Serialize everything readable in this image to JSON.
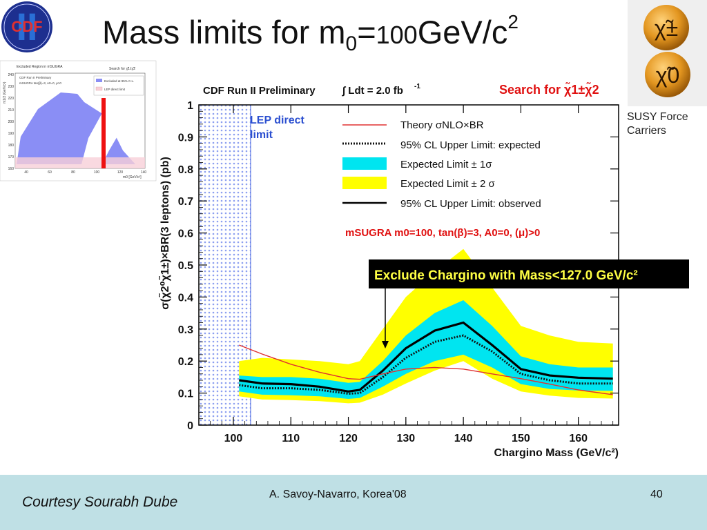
{
  "slide": {
    "title_main": "Mass limits for m",
    "title_sub": "0",
    "title_eq": "=",
    "title_value": "100",
    "title_unit": "GeV/c",
    "title_unit_sup": "2",
    "susy_caption": "SUSY Force Carriers",
    "susy_particles": [
      "χ̃±",
      "χ̃0"
    ],
    "logo_text": "CDF",
    "logo_roman": "II"
  },
  "footer": {
    "courtesy": "Courtesy Sourabh Dube",
    "author": "A. Savoy-Navarro, Korea'08",
    "page": "40"
  },
  "inset": {
    "title": "Excluded Region in mSUGRA",
    "search": "Search for χ̃1±χ̃2",
    "info1": "CDF Run II Preliminary",
    "info2": "mSUGRA tan(β)=3, A0=0, μ>0",
    "legend": [
      "Excluded at 95% C.L.",
      "LEP direct limit"
    ],
    "ylabel": "m1/2 (GeV/c²)",
    "xlabel": "m0 [GeV/c²]",
    "yticks": [
      "240",
      "230",
      "220",
      "210",
      "200",
      "190",
      "180",
      "170",
      "160"
    ],
    "xticks": [
      "40",
      "60",
      "80",
      "100",
      "120",
      "140"
    ]
  },
  "chart_data": {
    "type": "line",
    "header_left": "CDF Run II Preliminary",
    "header_lumi": "∫ Ldt = 2.0 fb",
    "header_lumi_sup": "-1",
    "header_right": "Search for χ̃1±χ̃2",
    "lep_label_1": "LEP direct",
    "lep_label_2": "limit",
    "lep_limit_x": 103,
    "xlabel": "Chargino Mass (GeV/c²)",
    "ylabel": "σ(χ̃2⁰χ̃1±)×BR(3 leptons) (pb)",
    "xlim": [
      94,
      167
    ],
    "ylim": [
      0,
      1
    ],
    "xticks": [
      100,
      110,
      120,
      130,
      140,
      150,
      160
    ],
    "yticks": [
      0,
      0.1,
      0.2,
      0.3,
      0.4,
      0.5,
      0.6,
      0.7,
      0.8,
      0.9,
      1
    ],
    "legend": [
      "Theory σNLO×BR",
      "95% CL Upper Limit: expected",
      "Expected Limit ± 1σ",
      "Expected Limit ± 2 σ",
      "95% CL Upper Limit: observed"
    ],
    "params_label": "mSUGRA m0=100, tan(β)=3, A0=0, (μ)>0",
    "annotation": "Exclude Chargino with Mass<127.0 GeV/c²",
    "annotation_x": 127,
    "x": [
      101,
      105,
      110,
      115,
      120,
      122,
      126,
      130,
      135,
      140,
      145,
      150,
      155,
      160,
      166
    ],
    "series": [
      {
        "name": "Theory σNLO×BR",
        "color": "#e03030",
        "values": [
          0.25,
          0.222,
          0.19,
          0.165,
          0.145,
          0.143,
          0.16,
          0.175,
          0.18,
          0.175,
          0.16,
          0.145,
          0.128,
          0.11,
          0.095
        ]
      },
      {
        "name": "95% CL Upper Limit: expected",
        "color": "#111111",
        "values": [
          0.125,
          0.115,
          0.115,
          0.11,
          0.098,
          0.1,
          0.15,
          0.21,
          0.26,
          0.28,
          0.23,
          0.16,
          0.14,
          0.13,
          0.13
        ]
      },
      {
        "name": "95% CL Upper Limit: observed",
        "color": "#000000",
        "values": [
          0.14,
          0.13,
          0.128,
          0.12,
          0.105,
          0.11,
          0.17,
          0.24,
          0.295,
          0.32,
          0.25,
          0.175,
          0.155,
          0.148,
          0.145
        ]
      }
    ],
    "band_1sigma": {
      "color": "#00e5f0",
      "lower": [
        0.105,
        0.095,
        0.093,
        0.09,
        0.082,
        0.085,
        0.12,
        0.16,
        0.2,
        0.22,
        0.18,
        0.128,
        0.113,
        0.108,
        0.107
      ],
      "upper": [
        0.155,
        0.15,
        0.15,
        0.145,
        0.132,
        0.135,
        0.2,
        0.28,
        0.35,
        0.39,
        0.31,
        0.215,
        0.19,
        0.18,
        0.18
      ]
    },
    "band_2sigma": {
      "color": "#ffff00",
      "lower": [
        0.09,
        0.08,
        0.078,
        0.075,
        0.068,
        0.07,
        0.095,
        0.13,
        0.17,
        0.2,
        0.145,
        0.105,
        0.092,
        0.085,
        0.083
      ],
      "upper": [
        0.2,
        0.21,
        0.205,
        0.2,
        0.19,
        0.2,
        0.3,
        0.4,
        0.48,
        0.55,
        0.43,
        0.31,
        0.28,
        0.26,
        0.255
      ]
    }
  }
}
